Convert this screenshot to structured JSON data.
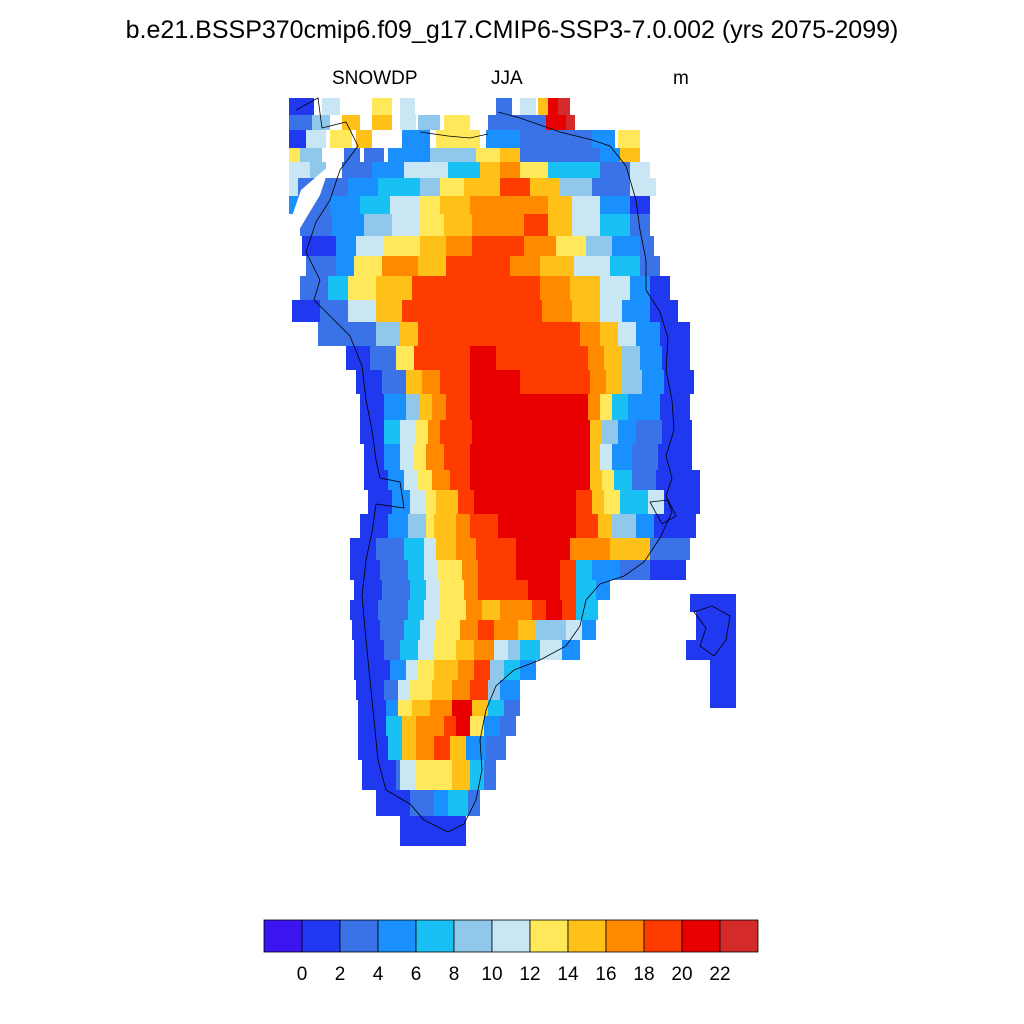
{
  "figure": {
    "title": "b.e21.BSSP370cmip6.f09_g17.CMIP6-SSP3-7.0.002 (yrs 2075-2099)",
    "variable": "SNOWDP",
    "season": "JJA",
    "units": "m"
  },
  "colorbar": {
    "colors": [
      "#3c14f0",
      "#2038f0",
      "#3a72e8",
      "#1a90ff",
      "#18c0f4",
      "#90c8ec",
      "#c8e6f4",
      "#ffe85a",
      "#ffc018",
      "#ff8a00",
      "#ff3c00",
      "#e80000",
      "#d42a2a"
    ],
    "tick_labels": [
      "0",
      "2",
      "4",
      "6",
      "8",
      "10",
      "12",
      "14",
      "16",
      "18",
      "20",
      "22"
    ]
  },
  "region": "Greenland"
}
